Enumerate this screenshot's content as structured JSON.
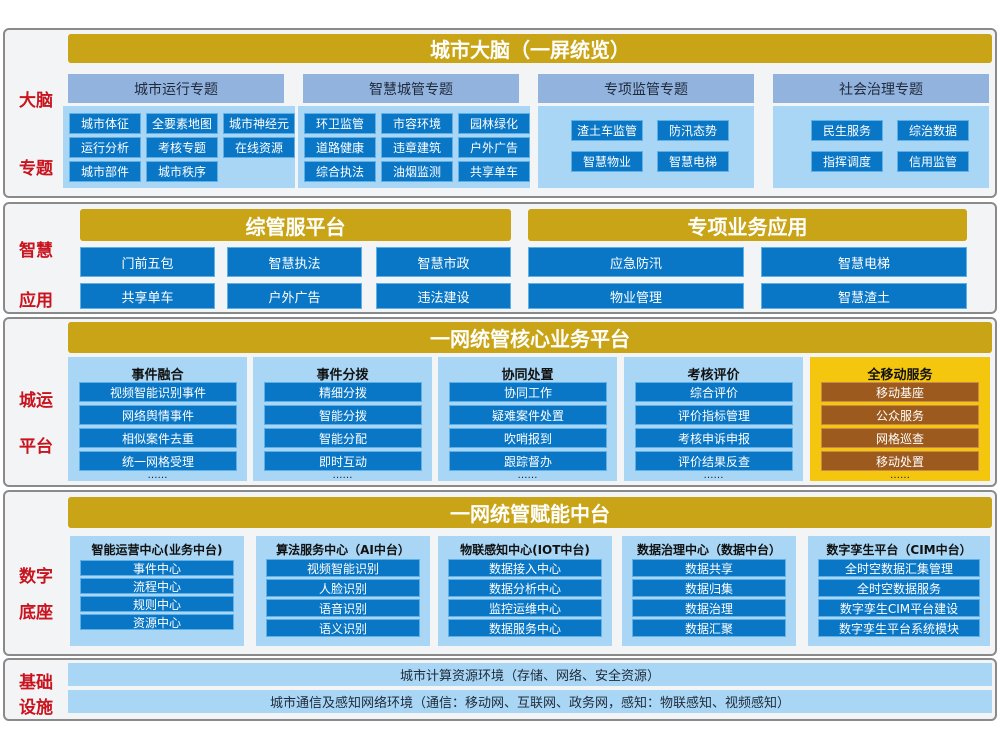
{
  "brain": {
    "title": "城市大脑（一屏统览）",
    "label1": "大脑",
    "label2": "专题",
    "topics": [
      {
        "header": "城市运行专题",
        "items": [
          "城市体征",
          "全要素地图",
          "城市神经元",
          "运行分析",
          "考核专题",
          "在线资源",
          "城市部件",
          "城市秩序"
        ]
      },
      {
        "header": "智慧城管专题",
        "items": [
          "环卫监管",
          "市容环境",
          "园林绿化",
          "道路健康",
          "违章建筑",
          "户外广告",
          "综合执法",
          "油烟监测",
          "共享单车"
        ]
      },
      {
        "header": "专项监管专题",
        "items": [
          "渣土车监管",
          "防汛态势",
          "智慧物业",
          "智慧电梯"
        ]
      },
      {
        "header": "社会治理专题",
        "items": [
          "民生服务",
          "综治数据",
          "指挥调度",
          "信用监管"
        ]
      }
    ]
  },
  "apps": {
    "label1": "智慧",
    "label2": "应用",
    "left": {
      "title": "综管服平台",
      "items": [
        "门前五包",
        "智慧执法",
        "智慧市政",
        "共享单车",
        "户外广告",
        "违法建设"
      ]
    },
    "right": {
      "title": "专项业务应用",
      "items": [
        "应急防汛",
        "智慧电梯",
        "物业管理",
        "智慧渣土"
      ]
    }
  },
  "ops": {
    "title": "一网统管核心业务平台",
    "label1": "城运",
    "label2": "平台",
    "columns": [
      {
        "title": "事件融合",
        "items": [
          "视频智能识别事件",
          "网络舆情事件",
          "相似案件去重",
          "统一网格受理"
        ],
        "more": "……"
      },
      {
        "title": "事件分拨",
        "items": [
          "精细分拨",
          "智能分拨",
          "智能分配",
          "即时互动"
        ],
        "more": "……"
      },
      {
        "title": "协同处置",
        "items": [
          "协同工作",
          "疑难案件处置",
          "吹哨报到",
          "跟踪督办"
        ],
        "more": "……"
      },
      {
        "title": "考核评价",
        "items": [
          "综合评价",
          "评价指标管理",
          "考核申诉申报",
          "评价结果反查"
        ],
        "more": "……"
      },
      {
        "title": "全移动服务",
        "items": [
          "移动基座",
          "公众服务",
          "网格巡查",
          "移动处置"
        ],
        "more": "……"
      }
    ]
  },
  "base": {
    "title": "一网统管赋能中台",
    "label1": "数字",
    "label2": "底座",
    "columns": [
      {
        "title": "智能运营中心(业务中台)",
        "items": [
          "事件中心",
          "流程中心",
          "规则中心",
          "资源中心"
        ]
      },
      {
        "title": "算法服务中心（AI中台）",
        "items": [
          "视频智能识别",
          "人脸识别",
          "语音识别",
          "语义识别"
        ]
      },
      {
        "title": "物联感知中心(IOT中台)",
        "items": [
          "数据接入中心",
          "数据分析中心",
          "监控运维中心",
          "数据服务中心"
        ]
      },
      {
        "title": "数据治理中心（数据中台）",
        "items": [
          "数据共享",
          "数据归集",
          "数据治理",
          "数据汇聚"
        ]
      },
      {
        "title": "数字孪生平台（CIM中台）",
        "items": [
          "全时空数据汇集管理",
          "全时空数据服务",
          "数字孪生CIM平台建设",
          "数字孪生平台系统模块"
        ]
      }
    ]
  },
  "infra": {
    "label1": "基础",
    "label2": "设施",
    "rows": [
      "城市计算资源环境（存储、网络、安全资源）",
      "城市通信及感知网络环境（通信：移动网、互联网、政务网，感知：物联感知、视频感知）"
    ]
  },
  "colors": {
    "gold": "#c9a417",
    "item_blue": "#0a77c6",
    "area_blue": "#a8d6f4",
    "header_blue": "#93b3df",
    "label_red": "#c8141e",
    "mobile_yellow": "#f5c60e",
    "mobile_item": "#9c5a1e"
  }
}
